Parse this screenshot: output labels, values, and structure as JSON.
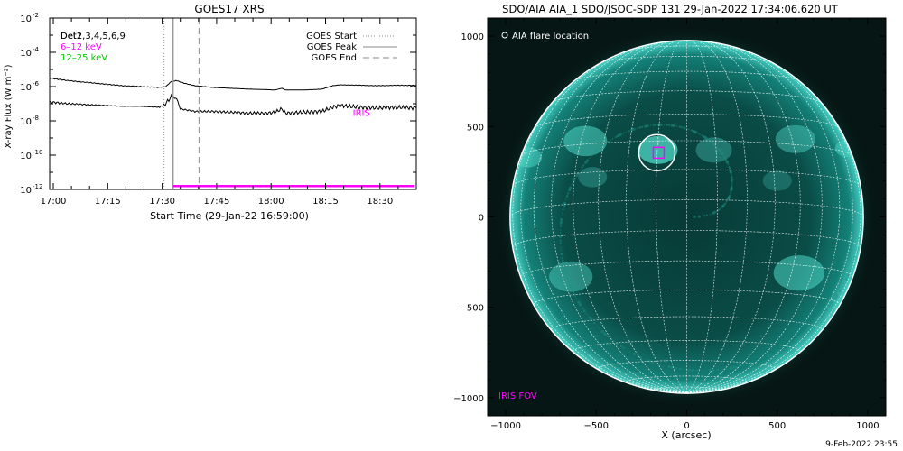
{
  "footer": {
    "timestamp": "9-Feb-2022 23:55"
  },
  "chart_data": [
    {
      "type": "line",
      "title": "GOES17 XRS",
      "xlabel": "Start Time (29-Jan-22 16:59:00)",
      "ylabel": "X-ray Flux (W m⁻²)",
      "x_range_minutes": [
        0,
        101
      ],
      "y_log_range": [
        -12,
        -2
      ],
      "y_scale": "log",
      "x_ticks": [
        {
          "t": 1,
          "label": "17:00"
        },
        {
          "t": 16,
          "label": "17:15"
        },
        {
          "t": 31,
          "label": "17:30"
        },
        {
          "t": 46,
          "label": "17:45"
        },
        {
          "t": 61,
          "label": "18:00"
        },
        {
          "t": 76,
          "label": "18:15"
        },
        {
          "t": 91,
          "label": "18:30"
        }
      ],
      "y_ticks": [
        {
          "exp": -12,
          "label": "10",
          "sup": "-12"
        },
        {
          "exp": -10,
          "label": "10",
          "sup": "-10"
        },
        {
          "exp": -8,
          "label": "10",
          "sup": "-8"
        },
        {
          "exp": -6,
          "label": "10",
          "sup": "-6"
        },
        {
          "exp": -4,
          "label": "10",
          "sup": "-4"
        },
        {
          "exp": -2,
          "label": "10",
          "sup": "-2"
        }
      ],
      "legend_left": [
        {
          "text": "Det1,3,4,5,6,9",
          "color": "#000000",
          "overprint": "Det2"
        },
        {
          "text": "6–12 keV",
          "color": "#ff00ff"
        },
        {
          "text": "12–25 keV",
          "color": "#00cc00"
        }
      ],
      "legend_right": [
        {
          "text": "GOES Start",
          "style": "dotted"
        },
        {
          "text": "GOES Peak",
          "style": "solid"
        },
        {
          "text": "GOES End",
          "style": "dashed"
        }
      ],
      "events": {
        "start": 31.5,
        "peak": 34.0,
        "end": 41.2
      },
      "iris_label": "IRIS",
      "iris_label_t": 83.5,
      "iris_label_exp": -7.5,
      "iris_bar": {
        "t_start": 34.0,
        "t_end": 101,
        "exp": -11.8
      },
      "series": [
        {
          "name": "6–12 keV",
          "points": [
            [
              0,
              -5.5
            ],
            [
              5,
              -5.65
            ],
            [
              10,
              -5.75
            ],
            [
              15,
              -5.85
            ],
            [
              20,
              -5.95
            ],
            [
              25,
              -6.0
            ],
            [
              30,
              -6.05
            ],
            [
              32,
              -6.0
            ],
            [
              33.5,
              -5.7
            ],
            [
              35,
              -5.65
            ],
            [
              37,
              -5.8
            ],
            [
              40,
              -5.95
            ],
            [
              45,
              -6.05
            ],
            [
              50,
              -6.1
            ],
            [
              55,
              -6.15
            ],
            [
              60,
              -6.18
            ],
            [
              62,
              -6.2
            ],
            [
              64,
              -6.1
            ],
            [
              65,
              -6.2
            ],
            [
              70,
              -6.2
            ],
            [
              75,
              -6.15
            ],
            [
              78,
              -5.95
            ],
            [
              80,
              -5.9
            ],
            [
              85,
              -5.92
            ],
            [
              90,
              -5.95
            ],
            [
              95,
              -5.93
            ],
            [
              101,
              -5.93
            ]
          ]
        },
        {
          "name": "12–25 keV",
          "points": [
            [
              0,
              -6.9
            ],
            [
              5,
              -7.0
            ],
            [
              10,
              -7.05
            ],
            [
              15,
              -7.1
            ],
            [
              20,
              -7.15
            ],
            [
              25,
              -7.15
            ],
            [
              30,
              -7.2
            ],
            [
              31.5,
              -7.1
            ],
            [
              33.5,
              -6.6
            ],
            [
              35,
              -6.7
            ],
            [
              36,
              -7.3
            ],
            [
              40,
              -7.45
            ],
            [
              45,
              -7.45
            ],
            [
              50,
              -7.5
            ],
            [
              55,
              -7.55
            ],
            [
              60,
              -7.55
            ],
            [
              62,
              -7.5
            ],
            [
              64,
              -7.3
            ],
            [
              65,
              -7.55
            ],
            [
              70,
              -7.5
            ],
            [
              75,
              -7.45
            ],
            [
              78,
              -7.2
            ],
            [
              80,
              -7.1
            ],
            [
              85,
              -7.2
            ],
            [
              90,
              -7.25
            ],
            [
              95,
              -7.2
            ],
            [
              101,
              -7.25
            ]
          ]
        }
      ]
    },
    {
      "type": "scatter",
      "title": "SDO/AIA AIA_1 SDO/JSOC-SDP 131 29-Jan-2022 17:34:06.620 UT",
      "xlabel": "X (arcsec)",
      "ylabel": "",
      "xlim": [
        -1100,
        1100
      ],
      "ylim": [
        -1100,
        1100
      ],
      "x_ticks": [
        -1000,
        -500,
        0,
        500,
        1000
      ],
      "y_ticks": [
        -1000,
        -500,
        0,
        500,
        1000
      ],
      "x_tick_labels": [
        "−1000",
        "−500",
        "0",
        "500",
        "1000"
      ],
      "y_tick_labels": [
        "−1000",
        "−500",
        "0",
        "500",
        "1000"
      ],
      "solar_radius_arcsec": 976,
      "grid_step_deg": 10,
      "b0_deg": -5.6,
      "flare_location": {
        "x": -165,
        "y": 355,
        "radius": 100
      },
      "iris_fov": {
        "x": -155,
        "y": 355,
        "w": 60,
        "h": 60
      },
      "legend_flare": "AIA flare location",
      "legend_iris": "IRIS FOV",
      "colors": {
        "background": "#061614",
        "disk": "#0e6e68",
        "limb": "#3fc6bb",
        "grid": "#ffffff",
        "iris": "#ff00ff"
      }
    }
  ]
}
